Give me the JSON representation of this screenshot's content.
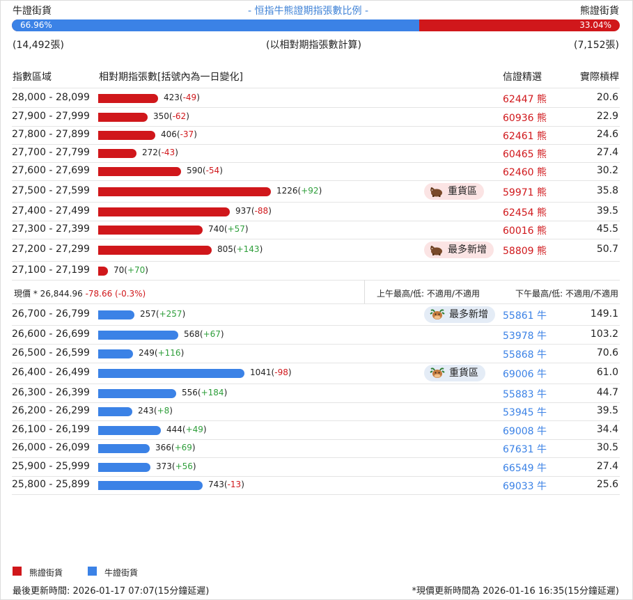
{
  "header": {
    "left_label": "牛證街貨",
    "title": "- 恒指牛熊證期指張數比例 -",
    "right_label": "熊證街貨",
    "bull_pct": "66.96%",
    "bear_pct": "33.04%",
    "bull_fraction": 0.6696,
    "left_count": "(14,492張)",
    "note": "(以相對期指張數計算)",
    "right_count": "(7,152張)"
  },
  "columns": {
    "range": "指數區域",
    "count": "相對期指張數[括號內為一日變化]",
    "pick": "信證精選",
    "leverage": "實際槓桿"
  },
  "bear_rows": [
    {
      "range": "28,000 - 28,099",
      "count": "423",
      "change": "-49",
      "code": "62447",
      "side": "熊",
      "lev": "20.6",
      "tag": ""
    },
    {
      "range": "27,900 - 27,999",
      "count": "350",
      "change": "-62",
      "code": "60936",
      "side": "熊",
      "lev": "22.9",
      "tag": ""
    },
    {
      "range": "27,800 - 27,899",
      "count": "406",
      "change": "-37",
      "code": "62461",
      "side": "熊",
      "lev": "24.6",
      "tag": ""
    },
    {
      "range": "27,700 - 27,799",
      "count": "272",
      "change": "-43",
      "code": "60465",
      "side": "熊",
      "lev": "27.4",
      "tag": ""
    },
    {
      "range": "27,600 - 27,699",
      "count": "590",
      "change": "-54",
      "code": "62460",
      "side": "熊",
      "lev": "30.2",
      "tag": ""
    },
    {
      "range": "27,500 - 27,599",
      "count": "1226",
      "change": "+92",
      "code": "59971",
      "side": "熊",
      "lev": "35.8",
      "tag": "重貨區"
    },
    {
      "range": "27,400 - 27,499",
      "count": "937",
      "change": "-88",
      "code": "62454",
      "side": "熊",
      "lev": "39.5",
      "tag": ""
    },
    {
      "range": "27,300 - 27,399",
      "count": "740",
      "change": "+57",
      "code": "60016",
      "side": "熊",
      "lev": "45.5",
      "tag": ""
    },
    {
      "range": "27,200 - 27,299",
      "count": "805",
      "change": "+143",
      "code": "58809",
      "side": "熊",
      "lev": "50.7",
      "tag": "最多新增"
    },
    {
      "range": "27,100 - 27,199",
      "count": "70",
      "change": "+70",
      "code": "",
      "side": "",
      "lev": "",
      "tag": ""
    }
  ],
  "mid": {
    "current_label": "現價 *",
    "current_value": "26,844.96",
    "current_change": "-78.66 (-0.3%)",
    "am": "上午最高/低: 不適用/不適用",
    "pm": "下午最高/低: 不適用/不適用"
  },
  "bull_rows": [
    {
      "range": "26,700 - 26,799",
      "count": "257",
      "change": "+257",
      "code": "55861",
      "side": "牛",
      "lev": "149.1",
      "tag": "最多新增"
    },
    {
      "range": "26,600 - 26,699",
      "count": "568",
      "change": "+67",
      "code": "53978",
      "side": "牛",
      "lev": "103.2",
      "tag": ""
    },
    {
      "range": "26,500 - 26,599",
      "count": "249",
      "change": "+116",
      "code": "55868",
      "side": "牛",
      "lev": "70.6",
      "tag": ""
    },
    {
      "range": "26,400 - 26,499",
      "count": "1041",
      "change": "-98",
      "code": "69006",
      "side": "牛",
      "lev": "61.0",
      "tag": "重貨區"
    },
    {
      "range": "26,300 - 26,399",
      "count": "556",
      "change": "+184",
      "code": "55883",
      "side": "牛",
      "lev": "44.7",
      "tag": ""
    },
    {
      "range": "26,200 - 26,299",
      "count": "243",
      "change": "+8",
      "code": "53945",
      "side": "牛",
      "lev": "39.5",
      "tag": ""
    },
    {
      "range": "26,100 - 26,199",
      "count": "444",
      "change": "+49",
      "code": "69008",
      "side": "牛",
      "lev": "34.4",
      "tag": ""
    },
    {
      "range": "26,000 - 26,099",
      "count": "366",
      "change": "+69",
      "code": "67631",
      "side": "牛",
      "lev": "30.5",
      "tag": ""
    },
    {
      "range": "25,900 - 25,999",
      "count": "373",
      "change": "+56",
      "code": "66549",
      "side": "牛",
      "lev": "27.4",
      "tag": ""
    },
    {
      "range": "25,800 - 25,899",
      "count": "743",
      "change": "-13",
      "code": "69033",
      "side": "牛",
      "lev": "25.6",
      "tag": ""
    }
  ],
  "legend": {
    "bear": "熊證街貨",
    "bull": "牛證街貨"
  },
  "footer": {
    "left": "最後更新時間: 2026-01-17 07:07(15分鐘延遲)",
    "right": "*現價更新時間為 2026-01-16 16:35(15分鐘延遲)"
  },
  "colors": {
    "bear": "#d0171b",
    "bull": "#3b82e6",
    "positive": "#2e9e3a",
    "title": "#3f82d6"
  },
  "icons": {
    "bear_tag": "bear-icon",
    "bull_tag": "bull-icon"
  }
}
